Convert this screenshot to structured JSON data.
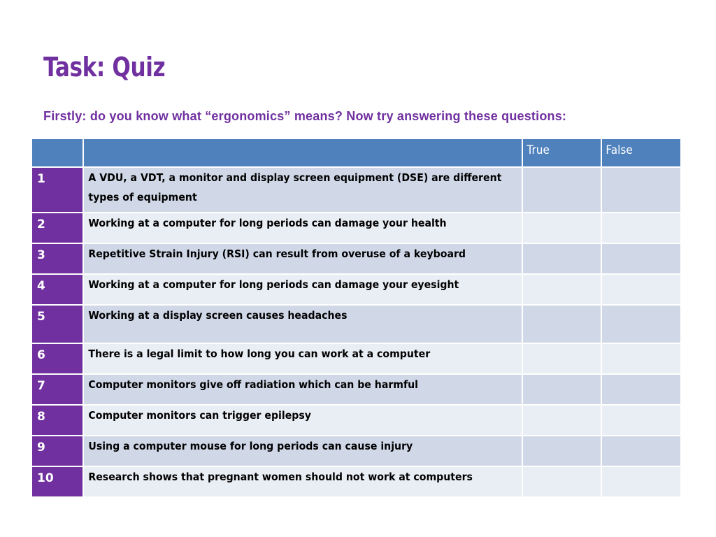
{
  "slide": {
    "title": "Task: Quiz",
    "subtitle": "Firstly: do you know what “ergonomics” means?  Now try answering these questions:"
  },
  "table": {
    "headers": [
      "",
      "",
      "True",
      "False"
    ],
    "rows": [
      {
        "num": "1",
        "question": "A VDU, a VDT, a monitor and display screen equipment (DSE) are different types of equipment"
      },
      {
        "num": "2",
        "question": "Working at a computer for long periods can damage your health"
      },
      {
        "num": "3",
        "question": "Repetitive Strain Injury (RSI) can result from overuse of a keyboard"
      },
      {
        "num": "4",
        "question": "Working at a computer for long periods can damage your eyesight"
      },
      {
        "num": "5",
        "question": "Working at a display screen causes headaches"
      },
      {
        "num": "6",
        "question": "There is a legal limit to how long you can work at a computer"
      },
      {
        "num": "7",
        "question": "Computer monitors give off radiation which can be harmful"
      },
      {
        "num": "8",
        "question": "Computer monitors can trigger epilepsy"
      },
      {
        "num": "9",
        "question": "Using a computer mouse for long periods can cause injury"
      },
      {
        "num": "10",
        "question": "Research shows that pregnant women should not work at computers"
      }
    ]
  },
  "colors": {
    "accent_purple": "#7030a0",
    "header_blue": "#4f81bd",
    "row_band_dark": "#d0d8e8",
    "row_band_light": "#e9edf4"
  }
}
